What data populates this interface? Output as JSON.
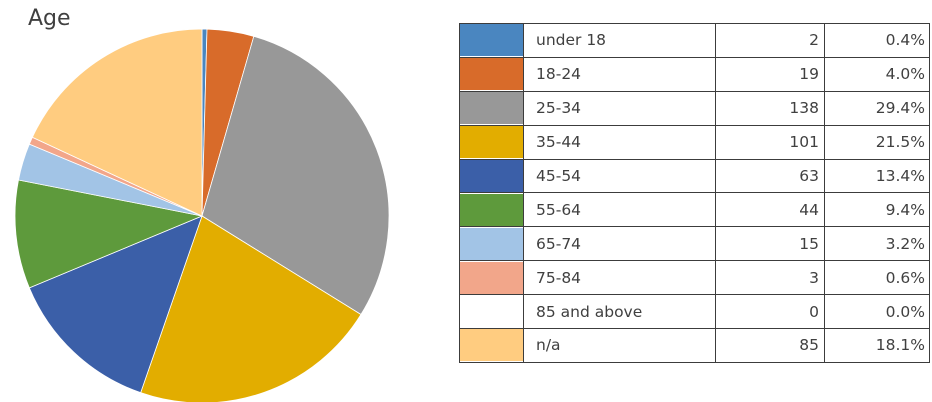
{
  "chart_data": {
    "type": "pie",
    "title": "Age",
    "categories": [
      "under 18",
      "18-24",
      "25-34",
      "35-44",
      "45-54",
      "55-64",
      "65-74",
      "75-84",
      "85 and above",
      "n/a"
    ],
    "values": [
      2,
      19,
      138,
      101,
      63,
      44,
      15,
      3,
      0,
      85
    ],
    "percentages": [
      "0.4%",
      "4.0%",
      "29.4%",
      "21.5%",
      "13.4%",
      "9.4%",
      "3.2%",
      "0.6%",
      "0.0%",
      "18.1%"
    ],
    "colors": [
      "#4a86c0",
      "#d86b2a",
      "#989898",
      "#e2ad00",
      "#3b5fa8",
      "#5e9a3c",
      "#a2c4e6",
      "#f2a68a",
      "#ffffff",
      "#ffcc80"
    ]
  }
}
